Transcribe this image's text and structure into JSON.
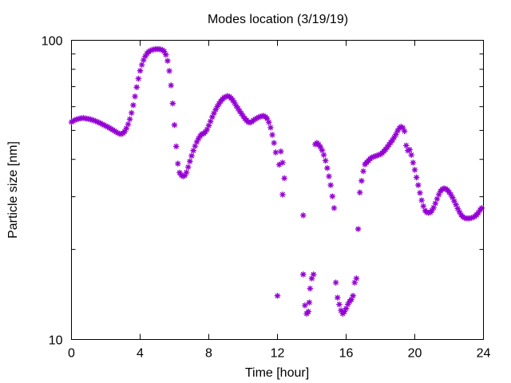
{
  "chart_data": {
    "type": "scatter",
    "title": "Modes location (3/19/19)",
    "xlabel": "Time [hour]",
    "ylabel": "Particle size [nm]",
    "xlim": [
      0,
      24
    ],
    "ylim": [
      10,
      100
    ],
    "yscale": "log",
    "grid": false,
    "legend": "none",
    "x_ticks": [
      0,
      4,
      8,
      12,
      16,
      20,
      24
    ],
    "x_tick_labels": [
      "0",
      "4",
      "8",
      "12",
      "16",
      "20",
      "24"
    ],
    "y_major_ticks": [
      10,
      100
    ],
    "y_tick_labels": [
      "10",
      "100"
    ],
    "y_minor_ticks": [
      20,
      30,
      40,
      50,
      60,
      70,
      80,
      90
    ],
    "marker_color": "#9400d3",
    "marker": "asterisk",
    "x": [
      0.0,
      0.1,
      0.2,
      0.3,
      0.4,
      0.5,
      0.6,
      0.7,
      0.8,
      0.9,
      1.0,
      1.1,
      1.2,
      1.3,
      1.4,
      1.5,
      1.6,
      1.7,
      1.8,
      1.9,
      2.0,
      2.1,
      2.2,
      2.3,
      2.4,
      2.5,
      2.6,
      2.7,
      2.8,
      2.9,
      3.0,
      3.1,
      3.2,
      3.3,
      3.4,
      3.5,
      3.6,
      3.7,
      3.8,
      3.9,
      4.0,
      4.1,
      4.2,
      4.3,
      4.4,
      4.5,
      4.6,
      4.7,
      4.8,
      4.9,
      5.0,
      5.1,
      5.2,
      5.3,
      5.4,
      5.5,
      5.6,
      5.7,
      5.8,
      5.9,
      6.0,
      6.1,
      6.2,
      6.3,
      6.4,
      6.5,
      6.6,
      6.7,
      6.8,
      6.9,
      7.0,
      7.1,
      7.2,
      7.3,
      7.4,
      7.5,
      7.6,
      7.7,
      7.8,
      7.9,
      8.0,
      8.1,
      8.2,
      8.3,
      8.4,
      8.5,
      8.6,
      8.7,
      8.8,
      8.9,
      9.0,
      9.1,
      9.2,
      9.3,
      9.4,
      9.5,
      9.6,
      9.7,
      9.8,
      9.9,
      10.0,
      10.1,
      10.2,
      10.3,
      10.4,
      10.5,
      10.6,
      10.7,
      10.8,
      10.9,
      11.0,
      11.1,
      11.2,
      11.3,
      11.4,
      11.5,
      11.6,
      11.7,
      11.8,
      11.9,
      12.0,
      12.1,
      12.2,
      12.3,
      12.4,
      12.3,
      13.5,
      13.5,
      13.6,
      13.7,
      13.8,
      13.85,
      13.9,
      14.0,
      14.1,
      14.2,
      14.3,
      14.4,
      14.5,
      14.6,
      14.7,
      14.8,
      14.9,
      15.0,
      15.1,
      15.2,
      15.3,
      15.4,
      15.5,
      15.6,
      15.7,
      15.8,
      15.9,
      16.0,
      16.1,
      16.2,
      16.3,
      16.4,
      16.5,
      16.6,
      16.7,
      16.8,
      16.9,
      17.0,
      17.1,
      17.2,
      17.3,
      17.4,
      17.5,
      17.6,
      17.7,
      17.8,
      17.9,
      18.0,
      18.1,
      18.2,
      18.3,
      18.4,
      18.5,
      18.6,
      18.7,
      18.8,
      18.9,
      19.0,
      19.1,
      19.2,
      19.3,
      19.4,
      19.5,
      19.6,
      19.7,
      19.8,
      19.9,
      20.0,
      20.1,
      20.2,
      20.3,
      20.4,
      20.5,
      20.6,
      20.7,
      20.8,
      20.9,
      21.0,
      21.1,
      21.2,
      21.3,
      21.4,
      21.5,
      21.6,
      21.7,
      21.8,
      21.9,
      22.0,
      22.1,
      22.2,
      22.3,
      22.4,
      22.5,
      22.6,
      22.7,
      22.8,
      22.9,
      23.0,
      23.1,
      23.2,
      23.3,
      23.4,
      23.5,
      23.6,
      23.7,
      23.8,
      23.9
    ],
    "y": [
      53.3,
      53.8,
      54.1,
      54.4,
      54.6,
      54.8,
      54.9,
      55.0,
      54.8,
      54.7,
      54.6,
      54.4,
      54.2,
      54.0,
      53.7,
      53.4,
      53.1,
      52.8,
      52.4,
      52.1,
      51.7,
      51.4,
      51.0,
      50.6,
      50.2,
      49.8,
      49.4,
      49.0,
      48.7,
      48.6,
      48.9,
      49.6,
      50.8,
      52.4,
      54.5,
      57.2,
      60.7,
      64.9,
      69.7,
      74.4,
      79.1,
      82.8,
      85.9,
      88.4,
      90.3,
      91.6,
      92.4,
      92.9,
      93.2,
      93.4,
      93.5,
      93.4,
      93.2,
      92.8,
      91.8,
      89.5,
      85.4,
      79.0,
      70.7,
      61.5,
      52.1,
      44.2,
      38.7,
      36.1,
      35.4,
      35.1,
      35.3,
      36.2,
      37.7,
      39.4,
      41.1,
      42.8,
      44.3,
      45.7,
      46.9,
      47.9,
      48.6,
      48.8,
      49.4,
      50.4,
      51.9,
      53.6,
      55.4,
      57.0,
      58.6,
      60.1,
      61.4,
      62.6,
      63.6,
      64.4,
      64.8,
      65.1,
      64.8,
      64.1,
      63.0,
      61.8,
      60.4,
      59.2,
      58.0,
      56.9,
      55.8,
      54.8,
      54.0,
      53.3,
      53.1,
      53.4,
      54.0,
      54.5,
      54.9,
      55.3,
      55.6,
      55.8,
      55.9,
      55.5,
      54.7,
      53.2,
      51.1,
      48.3,
      45.4,
      42.2,
      14.0,
      38.4,
      42.5,
      39.0,
      34.6,
      30.5,
      26.0,
      16.5,
      13.0,
      12.2,
      12.4,
      13.3,
      14.8,
      16.0,
      16.5,
      44.9,
      45.4,
      44.8,
      44.0,
      42.9,
      41.4,
      39.6,
      37.4,
      35.1,
      32.8,
      30.1,
      27.5,
      15.5,
      13.8,
      13.1,
      12.5,
      12.2,
      12.4,
      12.7,
      13.1,
      13.4,
      13.6,
      14.0,
      15.5,
      16.0,
      23.4,
      31.0,
      33.9,
      36.5,
      38.5,
      39.1,
      39.6,
      40.2,
      40.6,
      40.8,
      41.0,
      41.2,
      41.4,
      41.6,
      42.0,
      42.6,
      43.2,
      44.0,
      44.8,
      45.6,
      46.4,
      47.4,
      48.5,
      49.8,
      50.9,
      51.4,
      51.0,
      49.7,
      44.5,
      42.8,
      43.1,
      41.4,
      39.0,
      36.9,
      34.8,
      32.8,
      30.9,
      29.2,
      27.9,
      27.0,
      26.6,
      26.5,
      26.6,
      27.0,
      27.6,
      28.5,
      29.5,
      30.5,
      31.3,
      31.8,
      32.0,
      31.9,
      31.6,
      31.1,
      30.5,
      29.8,
      29.0,
      28.2,
      27.4,
      26.7,
      26.1,
      25.7,
      25.5,
      25.4,
      25.4,
      25.4,
      25.5,
      25.6,
      25.8,
      26.1,
      26.5,
      27.1,
      27.5
    ]
  }
}
